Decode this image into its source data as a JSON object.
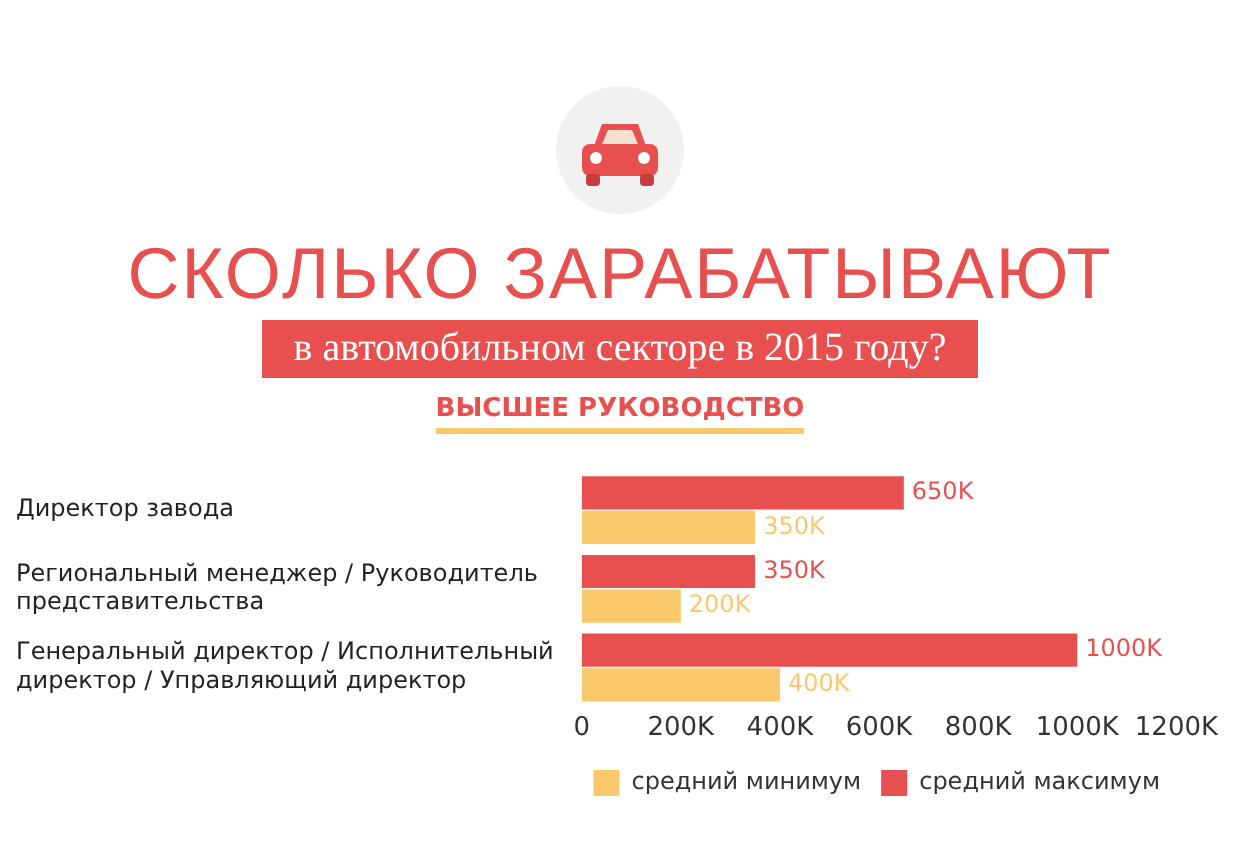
{
  "chart_data": {
    "type": "bar",
    "orientation": "horizontal",
    "title": "СКОЛЬКО ЗАРАБАТЫВАЮТ",
    "subtitle": "в автомобильном секторе в 2015 году?",
    "annotations": [
      "ВЫСШЕЕ РУКОВОДСТВО"
    ],
    "categories": [
      "Директор завода",
      "Региональный менеджер / Руководитель представительства",
      "Генеральный директор / Исполнительный директор / Управляющий директор"
    ],
    "series": [
      {
        "name": "средний максимум",
        "color": "#e8504f",
        "values": [
          650,
          350,
          1000
        ],
        "value_labels": [
          "650K",
          "350K",
          "1000K"
        ]
      },
      {
        "name": "средний минимум",
        "color": "#f9c86b",
        "values": [
          350,
          200,
          400
        ],
        "value_labels": [
          "350K",
          "200K",
          "400K"
        ]
      }
    ],
    "xlim": [
      0,
      1200
    ],
    "xticks": [
      0,
      {
        "value": 200,
        "label": "200K"
      },
      {
        "value": 400,
        "label": "400K"
      },
      {
        "value": 600,
        "label": "600K"
      },
      {
        "value": 800,
        "label": "800K"
      },
      {
        "value": 1000,
        "label": "1000K"
      },
      {
        "value": 1200,
        "label": "1200K"
      }
    ],
    "grid": false,
    "legend": "bottom"
  }
}
